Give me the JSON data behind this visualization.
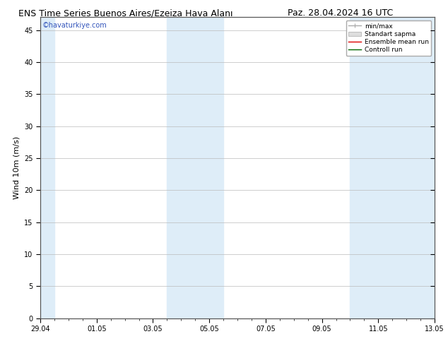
{
  "title_left": "ENS Time Series Buenos Aires/Ezeiza Hava Alanı",
  "title_right": "Paz. 28.04.2024 16 UTC",
  "ylabel": "Wind 10m (m/s)",
  "watermark": "©havaturkiye.com",
  "watermark_color": "#3355bb",
  "xlim_start": 0,
  "xlim_end": 14,
  "ylim_min": 0,
  "ylim_max": 47,
  "yticks": [
    0,
    5,
    10,
    15,
    20,
    25,
    30,
    35,
    40,
    45
  ],
  "xtick_labels": [
    "29.04",
    "01.05",
    "03.05",
    "05.05",
    "07.05",
    "09.05",
    "11.05",
    "13.05"
  ],
  "xtick_positions": [
    0,
    2,
    4,
    6,
    8,
    10,
    12,
    14
  ],
  "shaded_bands": [
    {
      "xmin": 0.0,
      "xmax": 0.5,
      "color": "#deedf8"
    },
    {
      "xmin": 4.5,
      "xmax": 6.5,
      "color": "#deedf8"
    },
    {
      "xmin": 11.0,
      "xmax": 14.0,
      "color": "#deedf8"
    }
  ],
  "background_color": "#ffffff",
  "plot_bg_color": "#ffffff",
  "grid_color": "#bbbbbb",
  "legend_labels": [
    "min/max",
    "Standart sapma",
    "Ensemble mean run",
    "Controll run"
  ],
  "title_fontsize": 9,
  "tick_fontsize": 7,
  "label_fontsize": 8,
  "watermark_fontsize": 7
}
